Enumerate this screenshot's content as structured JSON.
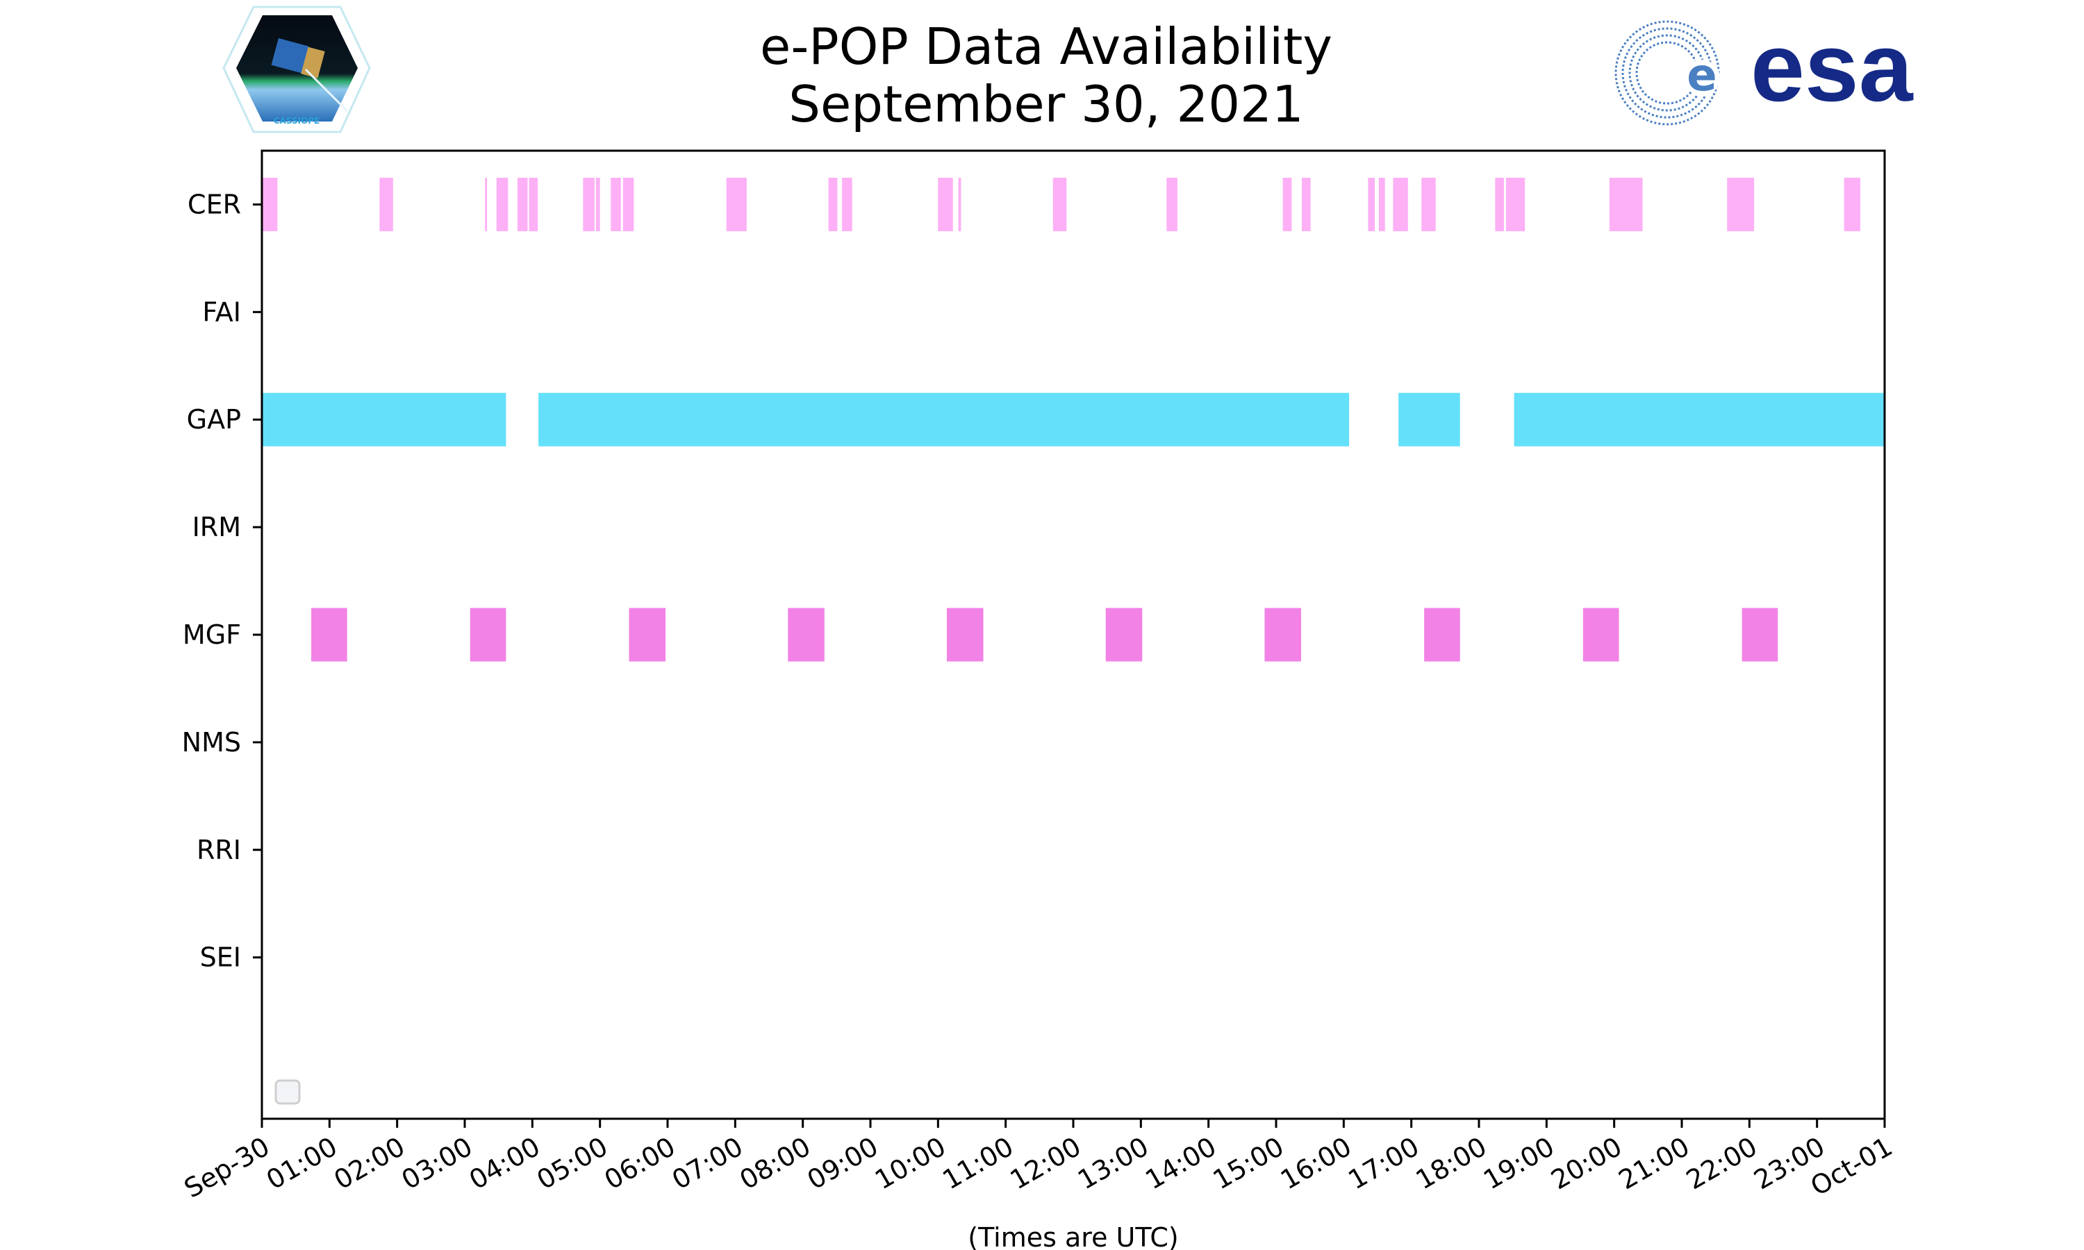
{
  "chart_data": {
    "type": "timeline",
    "title": "e-POP Data Availability",
    "subtitle": "September 30, 2021",
    "xlabel": "(Times are UTC)",
    "ylabel": "",
    "xlim_hours": [
      0,
      24
    ],
    "x_tick_labels": [
      "Sep-30",
      "01:00",
      "02:00",
      "03:00",
      "04:00",
      "05:00",
      "06:00",
      "07:00",
      "08:00",
      "09:00",
      "10:00",
      "11:00",
      "12:00",
      "13:00",
      "14:00",
      "15:00",
      "16:00",
      "17:00",
      "18:00",
      "19:00",
      "20:00",
      "21:00",
      "22:00",
      "23:00",
      "Oct-01"
    ],
    "categories": [
      "CER",
      "FAI",
      "GAP",
      "IRM",
      "MGF",
      "NMS",
      "RRI",
      "SEI"
    ],
    "legend": "bottom-left (empty)",
    "grid": false,
    "series": [
      {
        "name": "CER",
        "color": "#fdb0f5",
        "intervals_hours": [
          [
            0,
            0.23
          ],
          [
            1.74,
            1.94
          ],
          [
            3.3,
            3.33
          ],
          [
            3.47,
            3.64
          ],
          [
            3.78,
            3.93
          ],
          [
            3.95,
            4.08
          ],
          [
            4.75,
            4.92
          ],
          [
            4.94,
            5.0
          ],
          [
            5.16,
            5.31
          ],
          [
            5.34,
            5.5
          ],
          [
            6.87,
            7.17
          ],
          [
            8.38,
            8.51
          ],
          [
            8.58,
            8.73
          ],
          [
            10.0,
            10.22
          ],
          [
            10.3,
            10.34
          ],
          [
            11.7,
            11.9
          ],
          [
            13.38,
            13.54
          ],
          [
            15.1,
            15.23
          ],
          [
            15.38,
            15.51
          ],
          [
            16.36,
            16.46
          ],
          [
            16.52,
            16.61
          ],
          [
            16.73,
            16.95
          ],
          [
            17.15,
            17.36
          ],
          [
            18.24,
            18.37
          ],
          [
            18.4,
            18.68
          ],
          [
            19.93,
            20.42
          ],
          [
            21.67,
            22.07
          ],
          [
            23.4,
            23.64
          ]
        ]
      },
      {
        "name": "FAI",
        "color": "#000000",
        "intervals_hours": []
      },
      {
        "name": "GAP",
        "color": "#64e0fa",
        "intervals_hours": [
          [
            0,
            3.61
          ],
          [
            4.09,
            16.08
          ],
          [
            16.81,
            17.72
          ],
          [
            18.52,
            24
          ]
        ]
      },
      {
        "name": "IRM",
        "color": "#000000",
        "intervals_hours": []
      },
      {
        "name": "MGF",
        "color": "#f282e6",
        "intervals_hours": [
          [
            0.73,
            1.26
          ],
          [
            3.08,
            3.61
          ],
          [
            5.43,
            5.97
          ],
          [
            7.78,
            8.32
          ],
          [
            10.13,
            10.67
          ],
          [
            12.48,
            13.02
          ],
          [
            14.83,
            15.37
          ],
          [
            17.19,
            17.72
          ],
          [
            19.54,
            20.07
          ],
          [
            21.89,
            22.42
          ]
        ]
      },
      {
        "name": "NMS",
        "color": "#000000",
        "intervals_hours": []
      },
      {
        "name": "RRI",
        "color": "#000000",
        "intervals_hours": []
      },
      {
        "name": "SEI",
        "color": "#000000",
        "intervals_hours": []
      }
    ]
  },
  "logos": {
    "left": "CASSIOPE",
    "right": "esa"
  }
}
